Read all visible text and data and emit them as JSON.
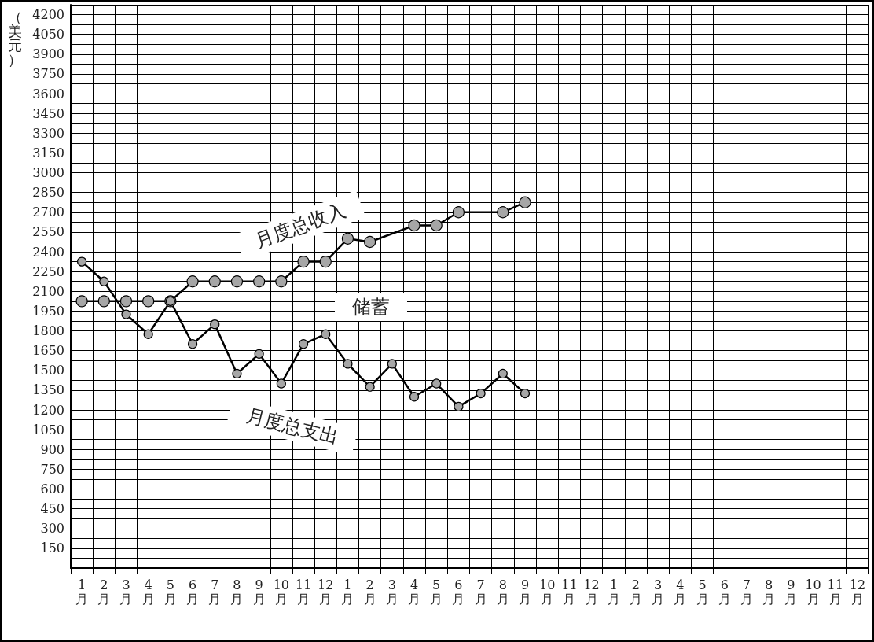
{
  "chart_data": {
    "type": "line",
    "ylabel": "（美元）",
    "categories": [
      "1月",
      "2月",
      "3月",
      "4月",
      "5月",
      "6月",
      "7月",
      "8月",
      "9月",
      "10月",
      "11月",
      "12月",
      "1月",
      "2月",
      "3月",
      "4月",
      "5月",
      "6月",
      "7月",
      "8月",
      "9月",
      "10月",
      "11月",
      "12月",
      "1月",
      "2月",
      "3月",
      "4月",
      "5月",
      "6月",
      "7月",
      "8月",
      "9月",
      "10月",
      "11月",
      "12月"
    ],
    "series": [
      {
        "name": "月度总收入",
        "color": "#000000",
        "values": [
          2025,
          2025,
          2025,
          2025,
          2025,
          2175,
          2175,
          2175,
          2175,
          2175,
          2325,
          2325,
          2500,
          2475,
          null,
          2600,
          2600,
          2700,
          null,
          2700,
          2775,
          null,
          null,
          null,
          null,
          null,
          null,
          null,
          null,
          null,
          null,
          null,
          null,
          null,
          null,
          null
        ]
      },
      {
        "name": "月度总支出",
        "color": "#000000",
        "values": [
          2325,
          2175,
          1925,
          1775,
          2025,
          1700,
          1850,
          1475,
          1625,
          1400,
          1700,
          1775,
          1550,
          1375,
          1550,
          1300,
          1400,
          1225,
          1325,
          1475,
          1325,
          null,
          null,
          null,
          null,
          null,
          null,
          null,
          null,
          null,
          null,
          null,
          null,
          null,
          null,
          null
        ]
      }
    ],
    "annotations": [
      "储蓄"
    ],
    "ylim": [
      0,
      4275
    ],
    "yticks": [
      150,
      300,
      450,
      600,
      750,
      900,
      1050,
      1200,
      1350,
      1500,
      1650,
      1800,
      1950,
      2100,
      2250,
      2400,
      2550,
      2700,
      2850,
      3000,
      3150,
      3300,
      3450,
      3600,
      3750,
      3900,
      4050,
      4200
    ],
    "grid": true,
    "marker": "circle",
    "line_style": "solid",
    "legend": false
  }
}
